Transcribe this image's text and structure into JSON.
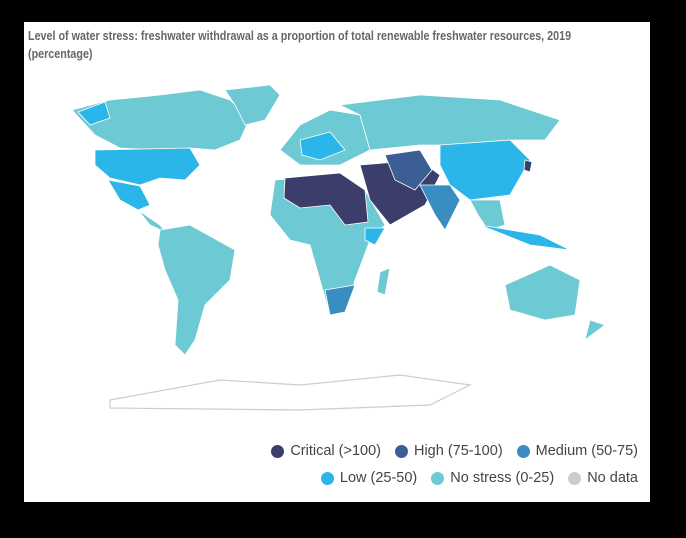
{
  "title": [
    "Level of water stress: freshwater withdrawal as a proportion of total renewable freshwater resources, 2019",
    "(percentage)"
  ],
  "legend": [
    {
      "label": "Critical (>100)",
      "color": "#3b3d6b"
    },
    {
      "label": "High (75-100)",
      "color": "#3b5f95"
    },
    {
      "label": "Medium (50-75)",
      "color": "#3a8dc0"
    },
    {
      "label": "Low (25-50)",
      "color": "#2ab6e8"
    },
    {
      "label": "No stress (0-25)",
      "color": "#6dc9d4"
    },
    {
      "label": "No data",
      "color": "#cccccc"
    }
  ]
}
